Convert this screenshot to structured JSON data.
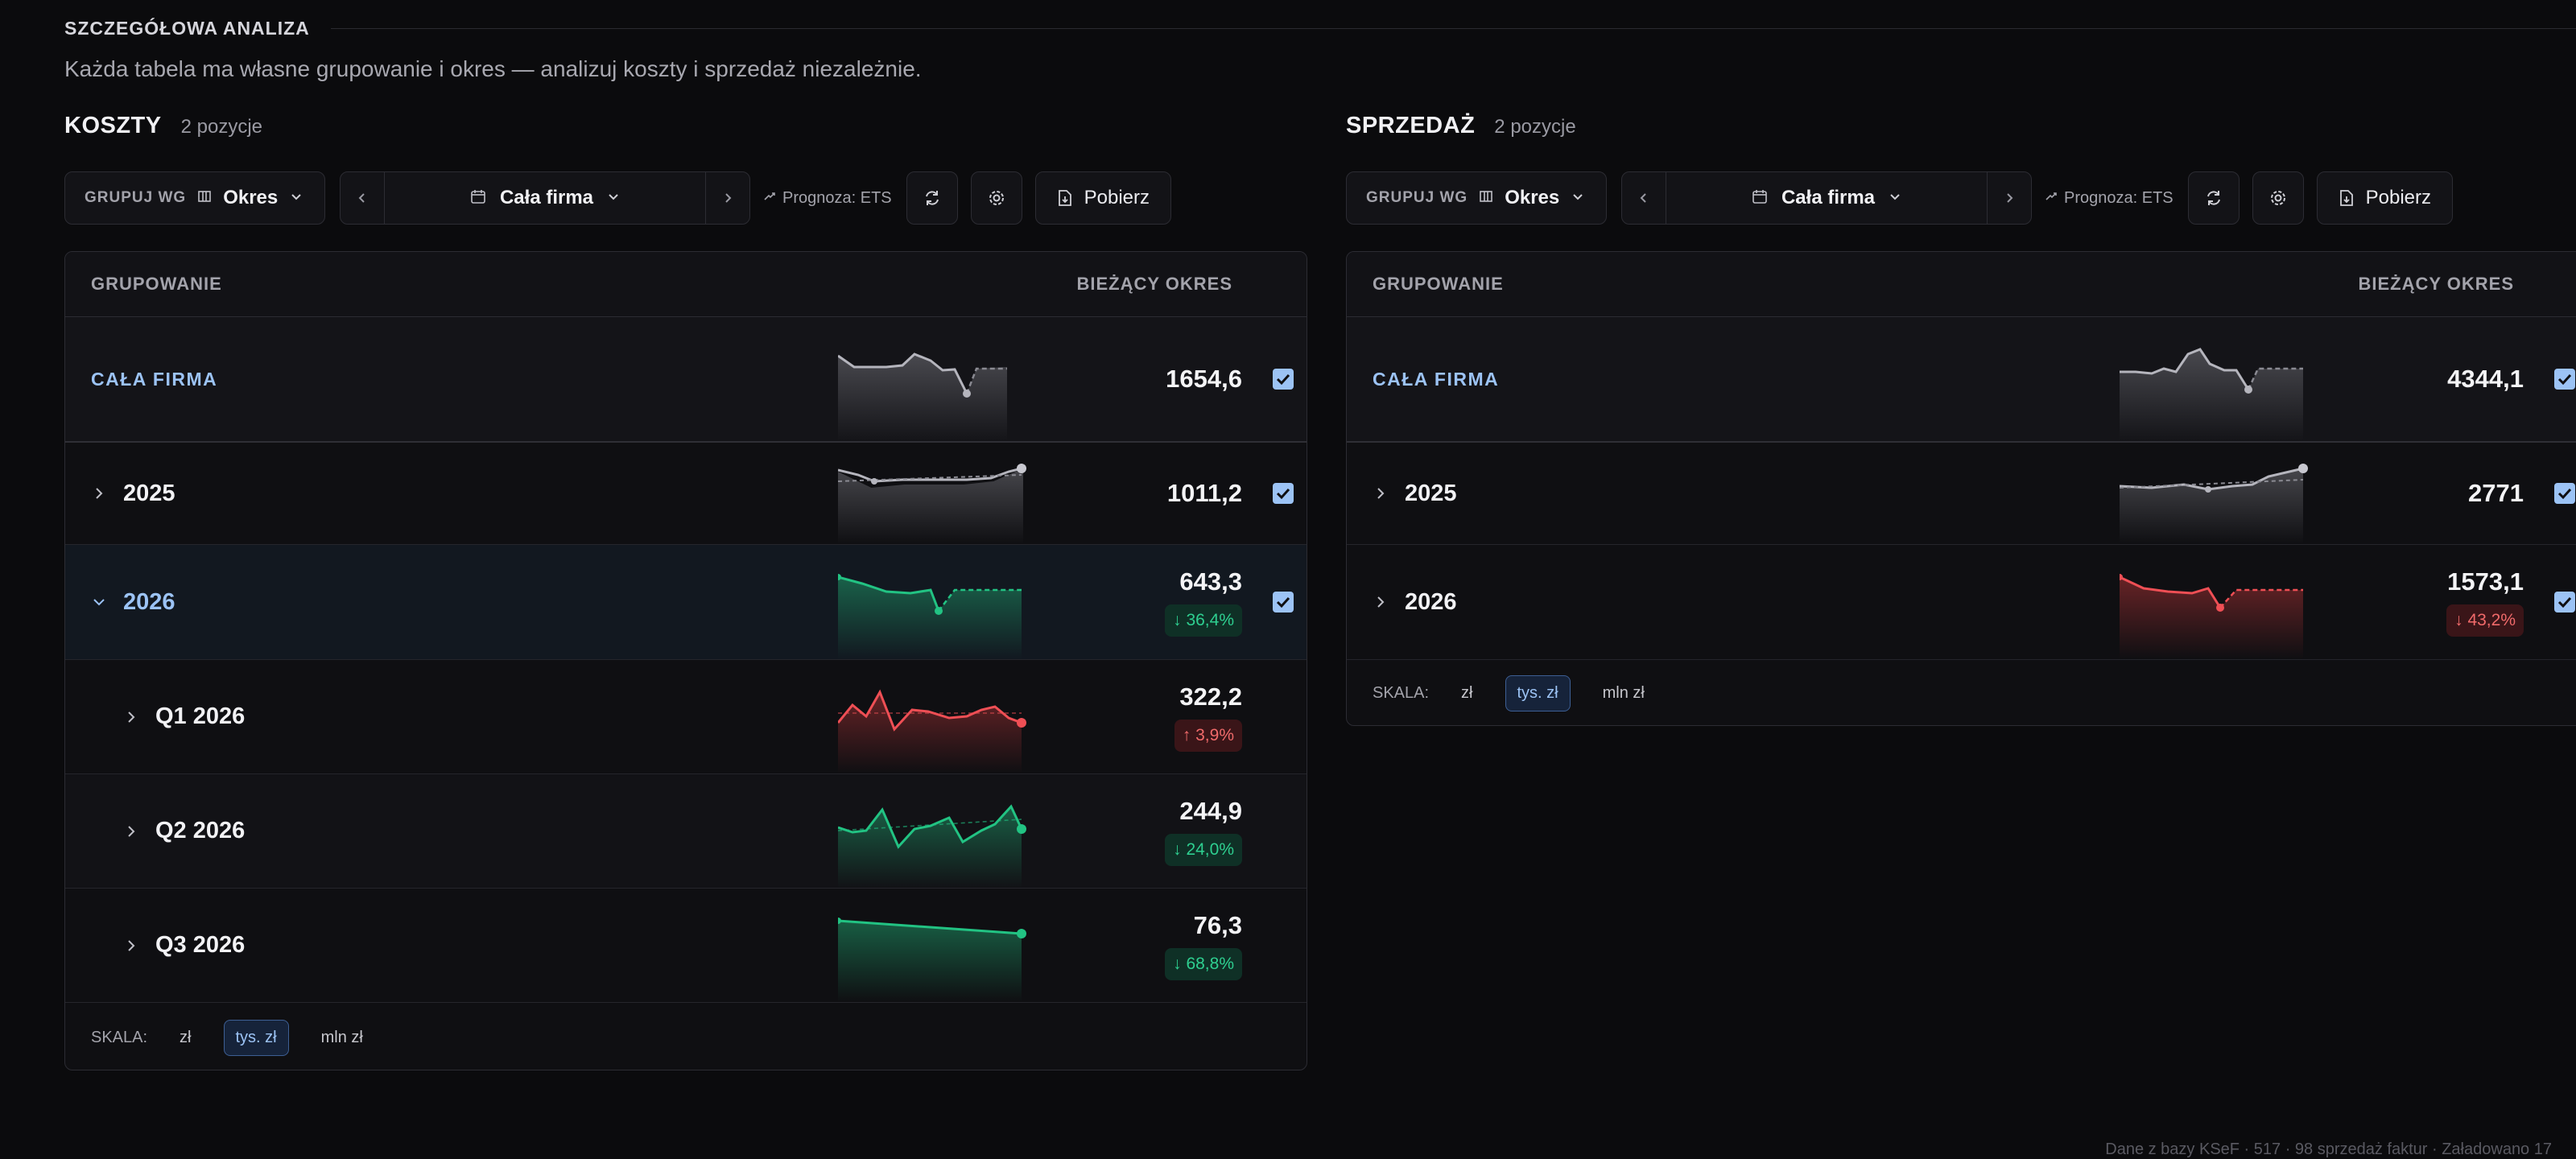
{
  "header": {
    "title": "SZCZEGÓŁOWA ANALIZA",
    "subtitle": "Każda tabela ma własne grupowanie i okres — analizuj koszty i sprzedaż niezależnie."
  },
  "labels": {
    "group_by": "GRUPUJ WG",
    "group_value": "Okres",
    "period_value": "Cała firma",
    "forecast": "Prognoza: ETS",
    "download": "Pobierz",
    "col_group": "GRUPOWANIE",
    "col_current": "BIEŻĄCY OKRES",
    "scale_label": "SKALA:",
    "scale_options": [
      "zł",
      "tys. zł",
      "mln zł"
    ]
  },
  "colors": {
    "accent": "#9cc3f5",
    "good": "#2ecf90",
    "bad": "#f06a6a",
    "neutral_line": "#b5b5bd"
  },
  "costs": {
    "title": "KOSZTY",
    "count": "2 pozycje",
    "rows": [
      {
        "label": "CAŁA FIRMA",
        "value": "1654,6",
        "badge": ""
      },
      {
        "label": "2025",
        "value": "1011,2",
        "badge": ""
      },
      {
        "label": "2026",
        "value": "643,3",
        "badge": "↓ 36,4%"
      },
      {
        "label": "Q1 2026",
        "value": "322,2",
        "badge": "↑ 3,9%"
      },
      {
        "label": "Q2 2026",
        "value": "244,9",
        "badge": "↓ 24,0%"
      },
      {
        "label": "Q3 2026",
        "value": "76,3",
        "badge": "↓ 68,8%"
      }
    ]
  },
  "sales": {
    "title": "SPRZEDAŻ",
    "count": "2 pozycje",
    "rows": [
      {
        "label": "CAŁA FIRMA",
        "value": "4344,1",
        "badge": ""
      },
      {
        "label": "2025",
        "value": "2771",
        "badge": ""
      },
      {
        "label": "2026",
        "value": "1573,1",
        "badge": "↓ 43,2%"
      }
    ]
  },
  "footer": {
    "text": "Dane z bazy KSeF · 517 · 98 sprzedaż faktur · Załadowano 17"
  }
}
